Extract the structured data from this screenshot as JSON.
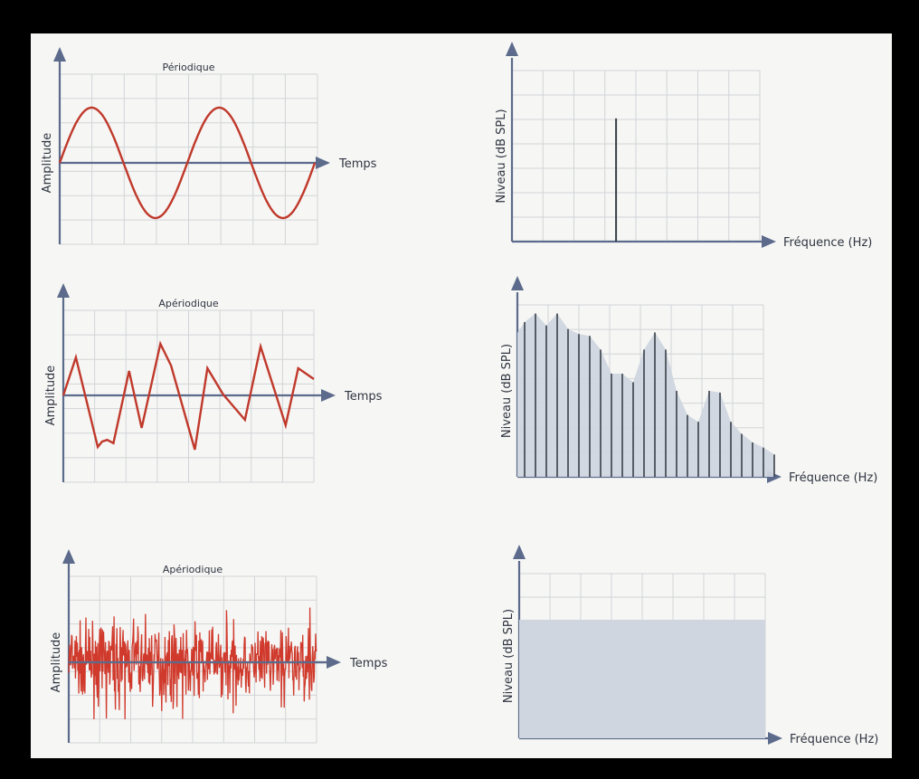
{
  "palette": {
    "signal": "#c0392b",
    "signal_dense": "#d03a2c",
    "axis": "#5c6b8c",
    "grid": "#d2d4d8",
    "spectrum_fill": "#cfd6df",
    "spectrum_line": "#3a4048"
  },
  "chart_data": [
    {
      "type": "line",
      "title": "Périodique",
      "xlabel": "Temps",
      "ylabel": "Amplitude",
      "series": [
        {
          "x": [
            0,
            0.25,
            0.5,
            0.75,
            1,
            1.25,
            1.5,
            1.75,
            2
          ],
          "y": [
            0,
            1,
            0,
            -1,
            0,
            1,
            0,
            -1,
            0
          ]
        }
      ]
    },
    {
      "type": "bar",
      "xlabel": "Fréquence (Hz)",
      "ylabel": "Niveau (dB SPL)",
      "series": [
        {
          "x": [
            0.42
          ],
          "y": [
            0.72
          ]
        }
      ]
    },
    {
      "type": "line",
      "title": "Apériodique",
      "xlabel": "Temps",
      "ylabel": "Amplitude",
      "series": [
        {
          "x": [
            0,
            0.2,
            0.55,
            0.62,
            0.7,
            0.8,
            1.05,
            1.25,
            1.55,
            1.72,
            2.1,
            2.3,
            2.55,
            2.9,
            3.15,
            3.55,
            3.75,
            4.0
          ],
          "y": [
            0,
            0.7,
            -0.95,
            -0.85,
            -0.82,
            -0.88,
            0.45,
            -0.6,
            0.95,
            0.55,
            -1.0,
            0.5,
            0.02,
            -0.45,
            0.9,
            -0.55,
            0.5,
            0.3
          ]
        }
      ]
    },
    {
      "type": "bar",
      "xlabel": "Fréquence (Hz)",
      "ylabel": "Niveau (dB SPL)",
      "series": [
        {
          "y": [
            0.9,
            0.95,
            0.88,
            0.95,
            0.86,
            0.83,
            0.82,
            0.74,
            0.6,
            0.6,
            0.55,
            0.74,
            0.84,
            0.74,
            0.5,
            0.36,
            0.32,
            0.5,
            0.49,
            0.32,
            0.25,
            0.2,
            0.17,
            0.13
          ]
        }
      ]
    },
    {
      "type": "line",
      "title": "Apériodique",
      "xlabel": "Temps",
      "ylabel": "Amplitude",
      "series": [
        {
          "description_of_values": "random noise",
          "amplitude_range": [
            -1,
            1
          ]
        }
      ]
    },
    {
      "type": "area",
      "xlabel": "Fréquence (Hz)",
      "ylabel": "Niveau (dB SPL)",
      "series": [
        {
          "y": [
            0.72,
            0.72
          ]
        }
      ]
    }
  ]
}
